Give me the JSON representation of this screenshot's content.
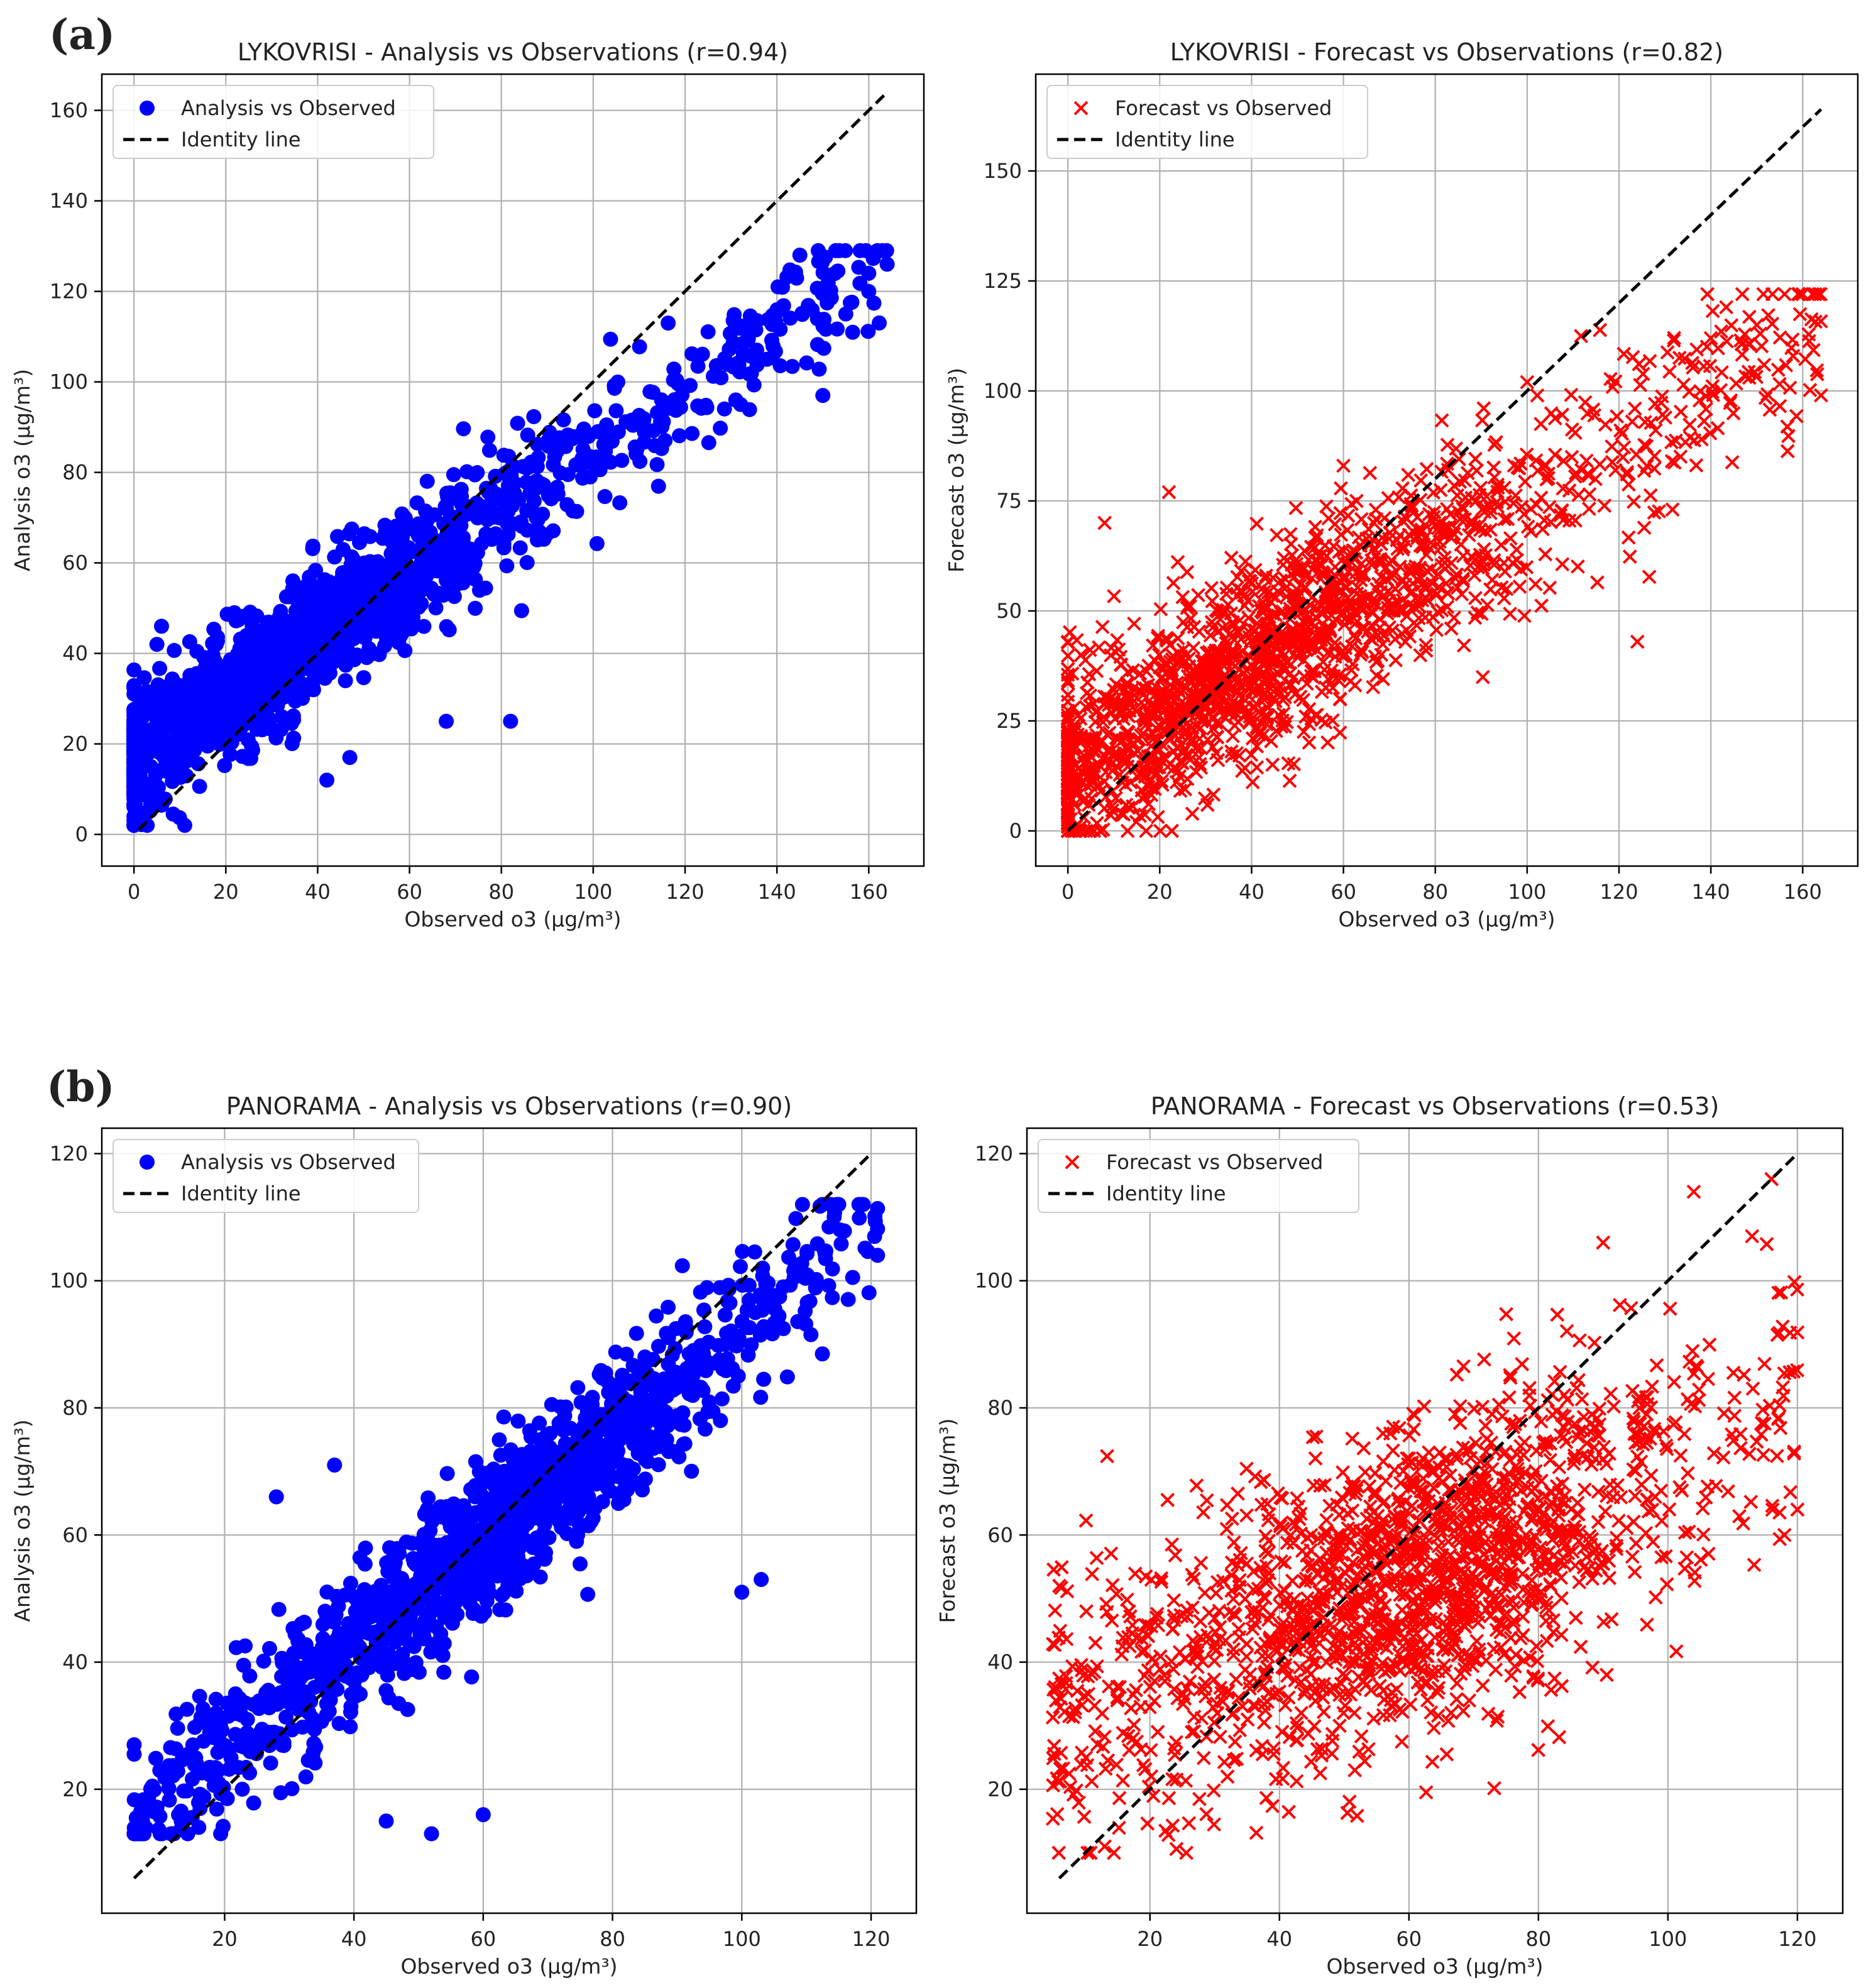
{
  "figure_labels": [
    "(a)",
    "(b)"
  ],
  "colors": {
    "analysis": "#0000ff",
    "forecast": "#ff0000",
    "identity": "#000000",
    "grid": "#b0b0b0"
  },
  "chart_data": [
    {
      "type": "scatter",
      "marker": "circle",
      "title": "LYKOVRISI - Analysis vs Observations (r=0.94)",
      "xlabel": "Observed o3 (µg/m³)",
      "ylabel": "Analysis o3 (µg/m³)",
      "xlim": [
        -7,
        172
      ],
      "ylim": [
        -7,
        168
      ],
      "xticks": [
        0,
        20,
        40,
        60,
        80,
        100,
        120,
        140,
        160
      ],
      "yticks": [
        0,
        20,
        40,
        60,
        80,
        100,
        120,
        140,
        160
      ],
      "legend": [
        "Analysis vs Observed",
        "Identity line"
      ],
      "legend_position": "top-left",
      "identity_range": [
        1,
        164
      ],
      "cloud": {
        "n": 1600,
        "x_center": 32,
        "x_spread": 27,
        "x_min": 0,
        "x_max": 164,
        "slope": 0.68,
        "intercept": 17,
        "noise": 7,
        "y_min": 2,
        "y_max": 129
      },
      "points": [
        [
          149,
          129
        ],
        [
          164,
          126
        ],
        [
          160,
          124
        ],
        [
          145,
          128
        ],
        [
          2,
          3
        ],
        [
          3,
          5
        ],
        [
          5,
          42
        ],
        [
          6,
          46
        ],
        [
          68,
          25
        ],
        [
          82,
          25
        ],
        [
          47,
          17
        ],
        [
          42,
          12
        ],
        [
          150,
          97
        ],
        [
          155,
          115
        ]
      ]
    },
    {
      "type": "scatter",
      "marker": "x",
      "title": "LYKOVRISI - Forecast vs Observations (r=0.82)",
      "xlabel": "Observed o3 (µg/m³)",
      "ylabel": "Forecast o3 (µg/m³)",
      "xlim": [
        -7,
        172
      ],
      "ylim": [
        -8,
        172
      ],
      "xticks": [
        0,
        20,
        40,
        60,
        80,
        100,
        120,
        140,
        160
      ],
      "yticks": [
        0,
        25,
        50,
        75,
        100,
        125,
        150
      ],
      "legend": [
        "Forecast vs Observed",
        "Identity line"
      ],
      "legend_position": "top-left",
      "identity_range": [
        0,
        164
      ],
      "cloud": {
        "n": 1700,
        "x_center": 40,
        "x_spread": 28,
        "x_min": 0,
        "x_max": 164,
        "slope": 0.62,
        "intercept": 14,
        "noise": 11,
        "y_min": 0,
        "y_max": 122
      },
      "points": [
        [
          160,
          122
        ],
        [
          164,
          99
        ],
        [
          124,
          43
        ],
        [
          22,
          77
        ],
        [
          8,
          70
        ],
        [
          4,
          0
        ],
        [
          7,
          0
        ],
        [
          60,
          83
        ],
        [
          100,
          102
        ],
        [
          140,
          112
        ],
        [
          150,
          115
        ]
      ]
    },
    {
      "type": "scatter",
      "marker": "circle",
      "title": "PANORAMA - Analysis vs Observations (r=0.90)",
      "xlabel": "Observed o3 (µg/m³)",
      "ylabel": "Analysis o3 (µg/m³)",
      "xlim": [
        1,
        127
      ],
      "ylim": [
        0.5,
        124
      ],
      "xticks": [
        20,
        40,
        60,
        80,
        100,
        120
      ],
      "yticks": [
        20,
        40,
        60,
        80,
        100,
        120
      ],
      "legend": [
        "Analysis vs Observed",
        "Identity line"
      ],
      "legend_position": "top-left",
      "identity_range": [
        6,
        120
      ],
      "cloud": {
        "n": 1400,
        "x_center": 62,
        "x_spread": 20,
        "x_min": 6,
        "x_max": 121,
        "slope": 0.82,
        "intercept": 10,
        "noise": 6,
        "y_min": 13,
        "y_max": 112
      },
      "points": [
        [
          6,
          27
        ],
        [
          16,
          14
        ],
        [
          37,
          71
        ],
        [
          52,
          13
        ],
        [
          45,
          15
        ],
        [
          60,
          16
        ],
        [
          121,
          104
        ],
        [
          100,
          51
        ],
        [
          103,
          53
        ],
        [
          115,
          112
        ],
        [
          28,
          66
        ]
      ]
    },
    {
      "type": "scatter",
      "marker": "x",
      "title": "PANORAMA - Forecast vs Observations (r=0.53)",
      "xlabel": "Observed o3 (µg/m³)",
      "ylabel": "Forecast o3 (µg/m³)",
      "xlim": [
        1,
        127
      ],
      "ylim": [
        0.5,
        124
      ],
      "xticks": [
        20,
        40,
        60,
        80,
        100,
        120
      ],
      "yticks": [
        20,
        40,
        60,
        80,
        100,
        120
      ],
      "legend": [
        "Forecast vs Observed",
        "Identity line"
      ],
      "legend_position": "top-left",
      "identity_range": [
        6,
        120
      ],
      "cloud": {
        "n": 1700,
        "x_center": 63,
        "x_spread": 18,
        "x_min": 5,
        "x_max": 120,
        "slope": 0.42,
        "intercept": 28,
        "noise": 12,
        "y_min": 10,
        "y_max": 116
      },
      "points": [
        [
          104,
          114
        ],
        [
          116,
          116
        ],
        [
          113,
          107
        ],
        [
          6,
          52
        ],
        [
          13,
          11
        ],
        [
          90,
          106
        ],
        [
          120,
          64
        ],
        [
          118,
          60
        ]
      ]
    }
  ]
}
